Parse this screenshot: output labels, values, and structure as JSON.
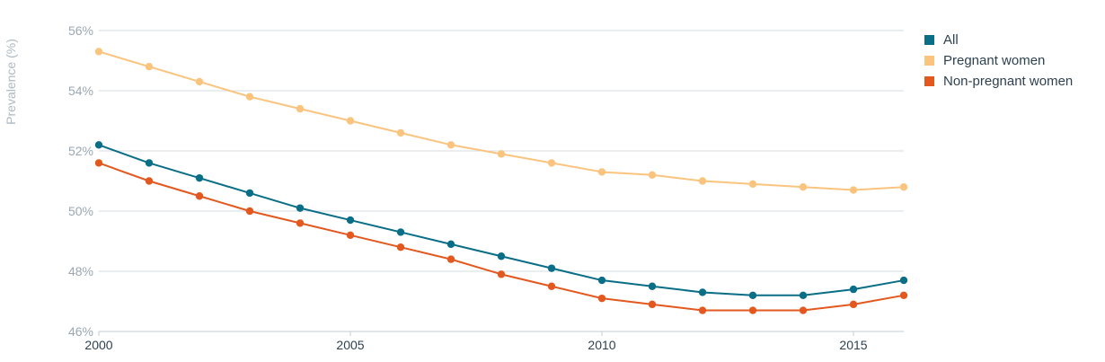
{
  "chart_data": {
    "type": "line",
    "ylabel": "Prevalence (%)",
    "xlabel": "",
    "ylim": [
      46,
      56
    ],
    "xlim": [
      2000,
      2016
    ],
    "y_ticks": [
      "56%",
      "54%",
      "52%",
      "50%",
      "48%",
      "46%"
    ],
    "x_ticks": [
      "2000",
      "2005",
      "2010",
      "2015"
    ],
    "grid": true,
    "legend_position": "right",
    "x": [
      2000,
      2001,
      2002,
      2003,
      2004,
      2005,
      2006,
      2007,
      2008,
      2009,
      2010,
      2011,
      2012,
      2013,
      2014,
      2015,
      2016
    ],
    "series": [
      {
        "name": "All",
        "color": "#0b6e87",
        "values": [
          52.2,
          51.6,
          51.1,
          50.6,
          50.1,
          49.7,
          49.3,
          48.9,
          48.5,
          48.1,
          47.7,
          47.5,
          47.3,
          47.2,
          47.2,
          47.4,
          47.7
        ]
      },
      {
        "name": "Pregnant women",
        "color": "#fbc47e",
        "values": [
          55.3,
          54.8,
          54.3,
          53.8,
          53.4,
          53.0,
          52.6,
          52.2,
          51.9,
          51.6,
          51.3,
          51.2,
          51.0,
          50.9,
          50.8,
          50.7,
          50.8
        ]
      },
      {
        "name": "Non-pregnant women",
        "color": "#e2581e",
        "values": [
          51.6,
          51.0,
          50.5,
          50.0,
          49.6,
          49.2,
          48.8,
          48.4,
          47.9,
          47.5,
          47.1,
          46.9,
          46.7,
          46.7,
          46.7,
          46.9,
          47.2
        ]
      }
    ]
  }
}
